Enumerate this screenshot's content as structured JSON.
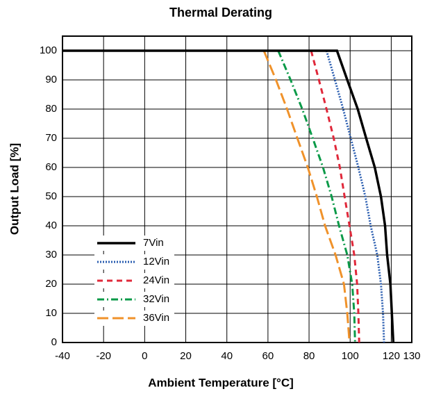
{
  "chart_data": {
    "type": "line",
    "title": "Thermal Derating",
    "x_label": "Ambient Temperature [°C]",
    "y_label": "Output Load [%]",
    "xlim": [
      -40,
      130
    ],
    "ylim": [
      0,
      105
    ],
    "xticks": [
      -40,
      -20,
      0,
      20,
      40,
      60,
      80,
      100,
      120,
      130
    ],
    "yticks": [
      0,
      10,
      20,
      30,
      40,
      50,
      60,
      70,
      80,
      90,
      100
    ],
    "grid": true,
    "legend": "lower left",
    "series": [
      {
        "name": "7Vin",
        "color": "#000000",
        "linestyle": "solid",
        "x": [
          -40,
          93.6,
          98.6,
          103.7,
          107.8,
          112,
          115,
          117,
          118,
          119.6,
          120.3,
          121
        ],
        "values": [
          100,
          100,
          90,
          80,
          70,
          60,
          50,
          40,
          30,
          20,
          10,
          0
        ]
      },
      {
        "name": "12Vin",
        "color": "#2a5db0",
        "linestyle": "dotted",
        "x": [
          88.5,
          92.6,
          96.6,
          100.3,
          104,
          107.4,
          110,
          113.2,
          115,
          116,
          116.5
        ],
        "values": [
          100,
          90,
          80,
          70,
          60,
          50,
          40,
          30,
          20,
          10,
          0
        ]
      },
      {
        "name": "24Vin",
        "color": "#e0283a",
        "linestyle": "dashed",
        "x": [
          81,
          84.8,
          88.5,
          92,
          95,
          97.3,
          99.7,
          102,
          103.4,
          104,
          104.4
        ],
        "values": [
          100,
          90,
          80,
          70,
          60,
          50,
          40,
          30,
          20,
          10,
          0
        ]
      },
      {
        "name": "32Vin",
        "color": "#0a9a48",
        "linestyle": "dashdot",
        "x": [
          65,
          71,
          76.7,
          81.8,
          86.8,
          91,
          94.6,
          98.6,
          101,
          102,
          102.4
        ],
        "values": [
          100,
          90,
          80,
          70,
          60,
          50,
          40,
          30,
          20,
          10,
          0
        ]
      },
      {
        "name": "36Vin",
        "color": "#f0922a",
        "linestyle": "longdash",
        "x": [
          58,
          63.9,
          69.3,
          74.3,
          79.4,
          83.8,
          87.8,
          92.9,
          97,
          98.6,
          99.7
        ],
        "values": [
          100,
          90,
          80,
          70,
          60,
          50,
          40,
          30,
          20,
          10,
          0
        ]
      }
    ]
  }
}
